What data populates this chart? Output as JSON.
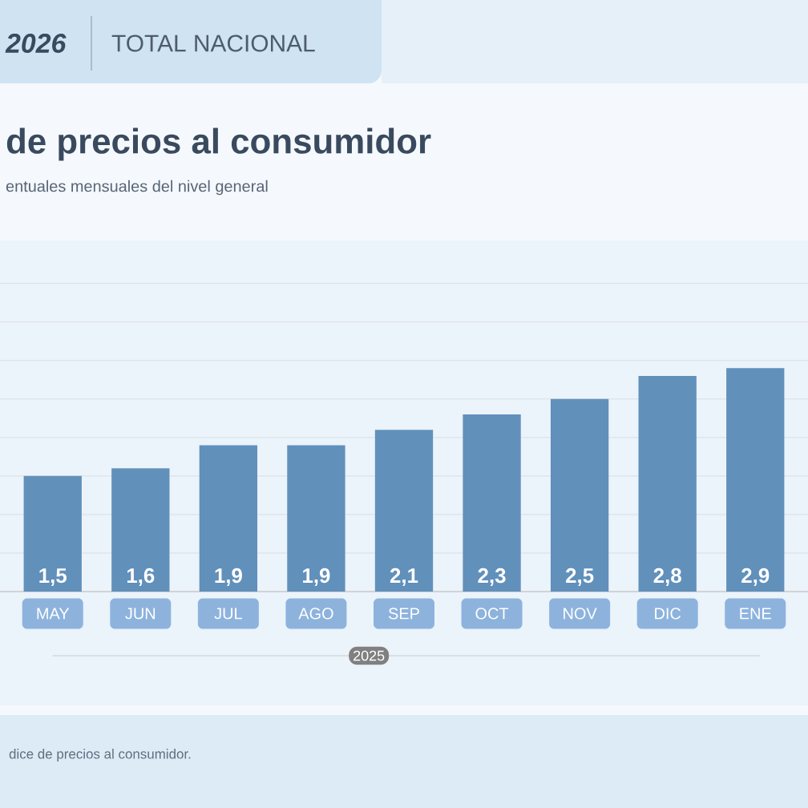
{
  "chart_data": {
    "type": "bar",
    "title": "de precios al consumidor",
    "subtitle": "entuales mensuales del nivel general",
    "categories": [
      "MAY",
      "JUN",
      "JUL",
      "AGO",
      "SEP",
      "OCT",
      "NOV",
      "DIC",
      "ENE"
    ],
    "values": [
      1.5,
      1.6,
      1.9,
      1.9,
      2.1,
      2.3,
      2.5,
      2.8,
      2.9
    ],
    "value_labels": [
      "1,5",
      "1,6",
      "1,9",
      "1,9",
      "2,1",
      "2,3",
      "2,5",
      "2,8",
      "2,9"
    ],
    "color": "#6190bb",
    "grid": "y",
    "tick_labels": "x",
    "annotations": [
      "2026",
      "TOTAL NACIONAL",
      "2025",
      "dice de precios al consumidor."
    ]
  }
}
